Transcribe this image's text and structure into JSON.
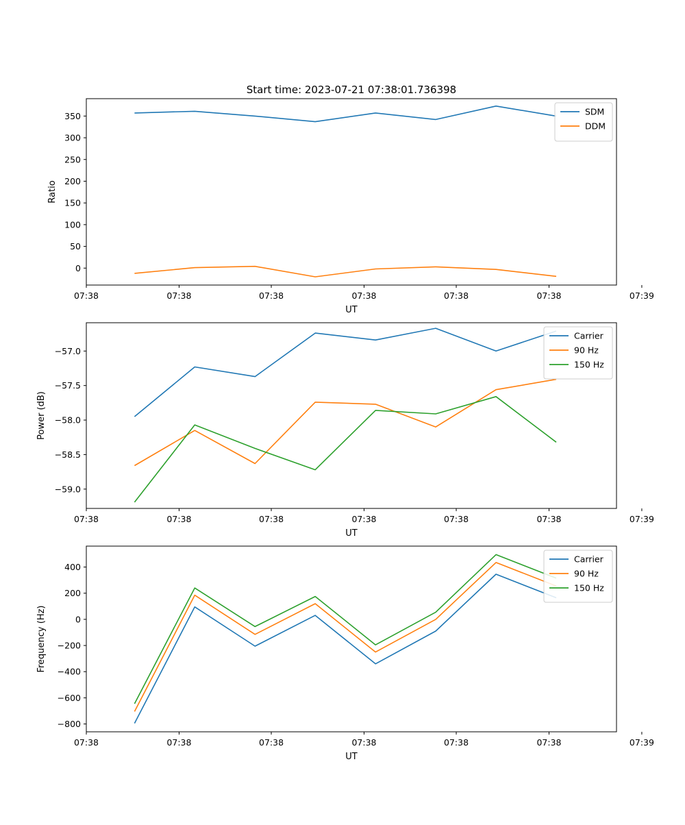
{
  "figure": {
    "title": "Start time: 2023-07-21 07:38:01.736398"
  },
  "chart_data": [
    {
      "type": "line",
      "xlabel": "UT",
      "ylabel": "Ratio",
      "x": [
        1,
        2,
        3,
        4,
        5,
        6,
        7,
        8
      ],
      "xlim": [
        0.2,
        9.0
      ],
      "xticks": [
        0.2,
        1.74,
        3.27,
        4.81,
        6.34,
        7.88,
        9.42
      ],
      "xtick_labels": [
        "07:38",
        "07:38",
        "07:38",
        "07:38",
        "07:38",
        "07:38",
        "07:39"
      ],
      "ylim": [
        -39,
        390
      ],
      "yticks": [
        0,
        50,
        100,
        150,
        200,
        250,
        300,
        350
      ],
      "ytick_labels": [
        "0",
        "50",
        "100",
        "150",
        "200",
        "250",
        "300",
        "350"
      ],
      "legend_position": "top-right",
      "series": [
        {
          "name": "SDM",
          "color": "#1f77b4",
          "values": [
            357,
            361,
            350,
            337,
            357,
            342,
            373,
            350
          ]
        },
        {
          "name": "DDM",
          "color": "#ff7f0e",
          "values": [
            -12,
            1,
            4,
            -20,
            -2,
            3,
            -3,
            -19
          ]
        }
      ]
    },
    {
      "type": "line",
      "xlabel": "UT",
      "ylabel": "Power (dB)",
      "x": [
        1,
        2,
        3,
        4,
        5,
        6,
        7,
        8
      ],
      "xlim": [
        0.2,
        9.0
      ],
      "xticks": [
        0.2,
        1.74,
        3.27,
        4.81,
        6.34,
        7.88,
        9.42
      ],
      "xtick_labels": [
        "07:38",
        "07:38",
        "07:38",
        "07:38",
        "07:38",
        "07:38",
        "07:39"
      ],
      "ylim": [
        -59.28,
        -56.59
      ],
      "yticks": [
        -59.0,
        -58.5,
        -58.0,
        -57.5,
        -57.0
      ],
      "ytick_labels": [
        "−59.0",
        "−58.5",
        "−58.0",
        "−57.5",
        "−57.0"
      ],
      "legend_position": "top-right",
      "series": [
        {
          "name": "Carrier",
          "color": "#1f77b4",
          "values": [
            -57.95,
            -57.23,
            -57.37,
            -56.74,
            -56.84,
            -56.67,
            -57.0,
            -56.71
          ]
        },
        {
          "name": "90 Hz",
          "color": "#ff7f0e",
          "values": [
            -58.66,
            -58.15,
            -58.63,
            -57.74,
            -57.77,
            -58.1,
            -57.56,
            -57.41
          ]
        },
        {
          "name": "150 Hz",
          "color": "#2ca02c",
          "values": [
            -59.19,
            -58.07,
            -58.41,
            -58.72,
            -57.86,
            -57.91,
            -57.66,
            -58.32
          ]
        }
      ]
    },
    {
      "type": "line",
      "xlabel": "UT",
      "ylabel": "Frequency (Hz)",
      "x": [
        1,
        2,
        3,
        4,
        5,
        6,
        7,
        8
      ],
      "xlim": [
        0.2,
        9.0
      ],
      "xticks": [
        0.2,
        1.74,
        3.27,
        4.81,
        6.34,
        7.88,
        9.42
      ],
      "xtick_labels": [
        "07:38",
        "07:38",
        "07:38",
        "07:38",
        "07:38",
        "07:38",
        "07:39"
      ],
      "ylim": [
        -860,
        560
      ],
      "yticks": [
        -800,
        -600,
        -400,
        -200,
        0,
        200,
        400
      ],
      "ytick_labels": [
        "−800",
        "−600",
        "−400",
        "−200",
        "0",
        "200",
        "400"
      ],
      "legend_position": "top-right",
      "series": [
        {
          "name": "Carrier",
          "color": "#1f77b4",
          "values": [
            -795,
            95,
            -205,
            30,
            -340,
            -90,
            345,
            165
          ]
        },
        {
          "name": "90 Hz",
          "color": "#ff7f0e",
          "values": [
            -705,
            185,
            -115,
            120,
            -250,
            0,
            435,
            255
          ]
        },
        {
          "name": "150 Hz",
          "color": "#2ca02c",
          "values": [
            -645,
            240,
            -55,
            175,
            -195,
            55,
            495,
            315
          ]
        }
      ]
    }
  ]
}
